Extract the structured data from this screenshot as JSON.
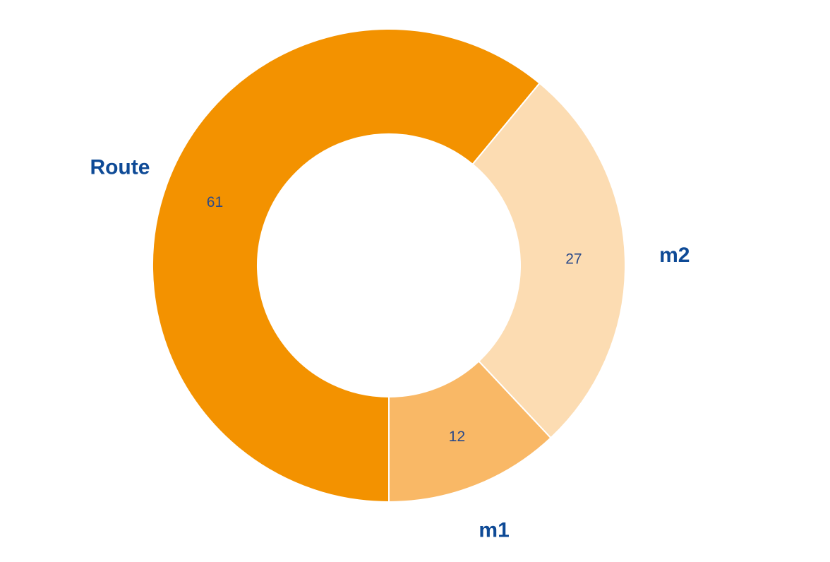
{
  "chart_data": {
    "type": "donut",
    "categories": [
      "Route",
      "m2",
      "m1"
    ],
    "values": [
      61,
      27,
      12
    ],
    "colors": [
      "#f39200",
      "#fcdcb2",
      "#f9b866"
    ]
  }
}
